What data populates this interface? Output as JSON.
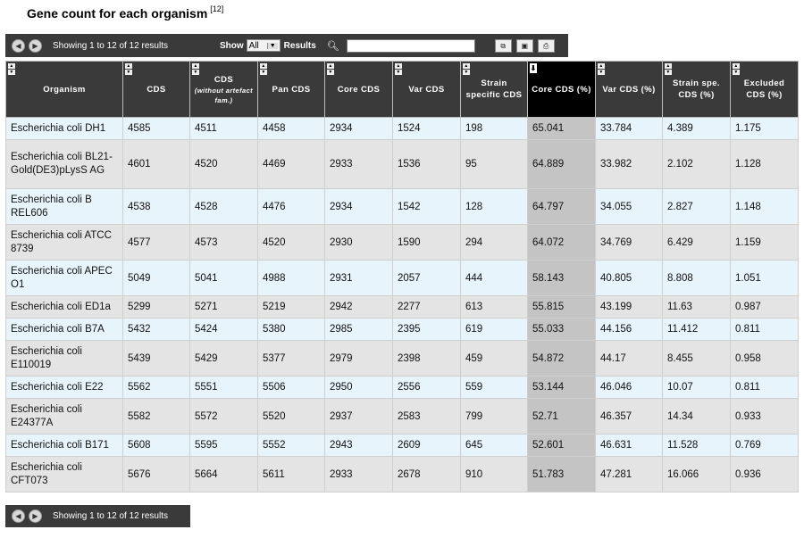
{
  "page": {
    "title": "Gene count for each organism",
    "title_ref": "[12]"
  },
  "toolbar": {
    "status": "Showing 1 to 12 of 12 results",
    "show_label": "Show",
    "show_value": "All",
    "results_label": "Results",
    "search_value": ""
  },
  "bottom_bar": {
    "status": "Showing 1 to 12 of 12 results"
  },
  "table": {
    "headers": [
      {
        "label": "Organism",
        "sub": ""
      },
      {
        "label": "CDS",
        "sub": ""
      },
      {
        "label": "CDS",
        "sub": "(without artefact fam.)"
      },
      {
        "label": "Pan CDS",
        "sub": ""
      },
      {
        "label": "Core CDS",
        "sub": ""
      },
      {
        "label": "Var CDS",
        "sub": ""
      },
      {
        "label": "Strain specific CDS",
        "sub": ""
      },
      {
        "label": "Core CDS (%)",
        "sub": ""
      },
      {
        "label": "Var CDS (%)",
        "sub": ""
      },
      {
        "label": "Strain spe. CDS (%)",
        "sub": ""
      },
      {
        "label": "Excluded CDS (%)",
        "sub": ""
      }
    ],
    "rows": [
      [
        "Escherichia coli DH1",
        "4585",
        "4511",
        "4458",
        "2934",
        "1524",
        "198",
        "65.041",
        "33.784",
        "4.389",
        "1.175"
      ],
      [
        "Escherichia coli BL21-Gold(DE3)pLysS AG",
        "4601",
        "4520",
        "4469",
        "2933",
        "1536",
        "95",
        "64.889",
        "33.982",
        "2.102",
        "1.128"
      ],
      [
        "Escherichia coli B REL606",
        "4538",
        "4528",
        "4476",
        "2934",
        "1542",
        "128",
        "64.797",
        "34.055",
        "2.827",
        "1.148"
      ],
      [
        "Escherichia coli ATCC 8739",
        "4577",
        "4573",
        "4520",
        "2930",
        "1590",
        "294",
        "64.072",
        "34.769",
        "6.429",
        "1.159"
      ],
      [
        "Escherichia coli APEC O1",
        "5049",
        "5041",
        "4988",
        "2931",
        "2057",
        "444",
        "58.143",
        "40.805",
        "8.808",
        "1.051"
      ],
      [
        "Escherichia coli ED1a",
        "5299",
        "5271",
        "5219",
        "2942",
        "2277",
        "613",
        "55.815",
        "43.199",
        "11.63",
        "0.987"
      ],
      [
        "Escherichia coli B7A",
        "5432",
        "5424",
        "5380",
        "2985",
        "2395",
        "619",
        "55.033",
        "44.156",
        "11.412",
        "0.811"
      ],
      [
        "Escherichia coli E110019",
        "5439",
        "5429",
        "5377",
        "2979",
        "2398",
        "459",
        "54.872",
        "44.17",
        "8.455",
        "0.958"
      ],
      [
        "Escherichia coli E22",
        "5562",
        "5551",
        "5506",
        "2950",
        "2556",
        "559",
        "53.144",
        "46.046",
        "10.07",
        "0.811"
      ],
      [
        "Escherichia coli E24377A",
        "5582",
        "5572",
        "5520",
        "2937",
        "2583",
        "799",
        "52.71",
        "46.357",
        "14.34",
        "0.933"
      ],
      [
        "Escherichia coli B171",
        "5608",
        "5595",
        "5552",
        "2943",
        "2609",
        "645",
        "52.601",
        "46.631",
        "11.528",
        "0.769"
      ],
      [
        "Escherichia coli CFT073",
        "5676",
        "5664",
        "5611",
        "2933",
        "2678",
        "910",
        "51.783",
        "47.281",
        "16.066",
        "0.936"
      ]
    ]
  }
}
